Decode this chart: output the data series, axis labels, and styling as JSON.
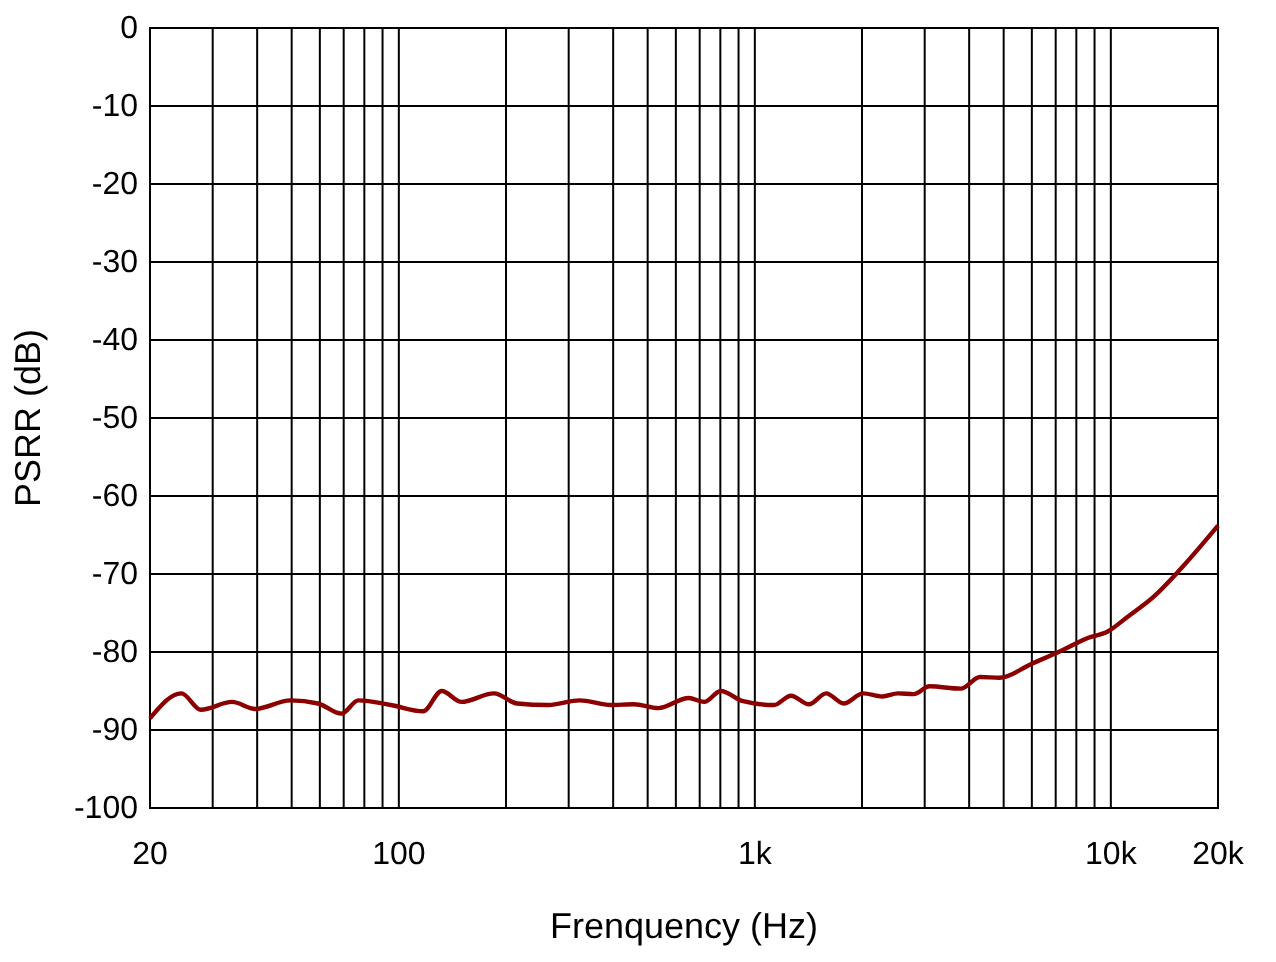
{
  "chart_data": {
    "type": "line",
    "xlabel": "Frenquency (Hz)",
    "ylabel": "PSRR (dB)",
    "log": "x",
    "grid": true,
    "xlim": [
      20,
      20000
    ],
    "ylim": [
      -100,
      0
    ],
    "xticks": [
      20,
      {
        "value": 30,
        "label": null
      },
      {
        "value": 40,
        "label": null
      },
      {
        "value": 50,
        "label": null
      },
      {
        "value": 60,
        "label": null
      },
      {
        "value": 70,
        "label": null
      },
      {
        "value": 80,
        "label": null
      },
      {
        "value": 90,
        "label": null
      },
      100,
      {
        "value": 200,
        "label": null
      },
      {
        "value": 300,
        "label": null
      },
      {
        "value": 400,
        "label": null
      },
      {
        "value": 500,
        "label": null
      },
      {
        "value": 600,
        "label": null
      },
      {
        "value": 700,
        "label": null
      },
      {
        "value": 800,
        "label": null
      },
      {
        "value": 900,
        "label": null
      },
      {
        "value": 1000,
        "label": "1k"
      },
      {
        "value": 2000,
        "label": null
      },
      {
        "value": 3000,
        "label": null
      },
      {
        "value": 4000,
        "label": null
      },
      {
        "value": 5000,
        "label": null
      },
      {
        "value": 6000,
        "label": null
      },
      {
        "value": 7000,
        "label": null
      },
      {
        "value": 8000,
        "label": null
      },
      {
        "value": 9000,
        "label": null
      },
      {
        "value": 10000,
        "label": "10k"
      },
      {
        "value": 20000,
        "label": "20k"
      }
    ],
    "yticks": [
      0,
      -10,
      -20,
      -30,
      -40,
      -50,
      -60,
      -70,
      -80,
      -90,
      -100
    ],
    "x": [
      20,
      24.5,
      27.8,
      34,
      39.5,
      49.6,
      59.3,
      69,
      77,
      95,
      117,
      132,
      150,
      185,
      215,
      263,
      322,
      394,
      458,
      535,
      652,
      721,
      802,
      927,
      1131,
      1264,
      1419,
      1586,
      1777,
      2014,
      2281,
      2525,
      2795,
      3095,
      3788,
      4292,
      4871,
      5999,
      7360,
      8610,
      9775,
      11130,
      13200,
      15600,
      20000
    ],
    "series": [
      {
        "color": "#8b0000",
        "values": [
          -88.5,
          -85.3,
          -87.4,
          -86.4,
          -87.3,
          -86.2,
          -86.6,
          -87.9,
          -86.2,
          -86.8,
          -87.6,
          -85.0,
          -86.4,
          -85.3,
          -86.6,
          -86.8,
          -86.2,
          -86.8,
          -86.7,
          -87.2,
          -85.9,
          -86.4,
          -85.0,
          -86.3,
          -86.8,
          -85.6,
          -86.7,
          -85.3,
          -86.6,
          -85.3,
          -85.7,
          -85.3,
          -85.4,
          -84.4,
          -84.7,
          -83.2,
          -83.3,
          -81.5,
          -79.7,
          -78.2,
          -77.4,
          -75.5,
          -72.9,
          -69.5,
          -63.8
        ]
      }
    ]
  }
}
